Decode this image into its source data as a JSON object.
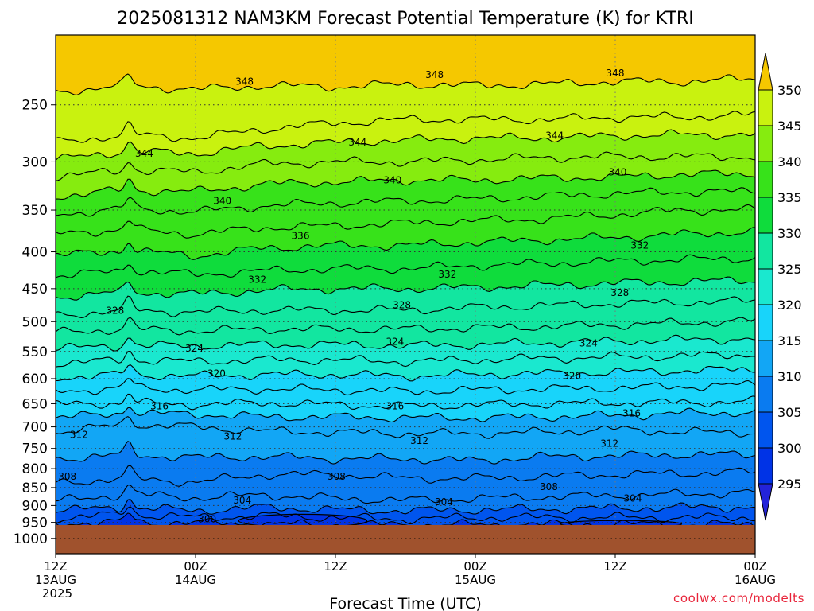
{
  "chart_data": {
    "type": "contour",
    "title": "2025081312 NAM3KM Forecast Potential Temperature (K) for KTRI",
    "xlabel": "Forecast Time (UTC)",
    "ylabel": "",
    "x_ticks": [
      {
        "hour": 0,
        "lines": [
          "12Z",
          "13AUG",
          "2025"
        ]
      },
      {
        "hour": 12,
        "lines": [
          "00Z",
          "14AUG"
        ]
      },
      {
        "hour": 24,
        "lines": [
          "12Z"
        ]
      },
      {
        "hour": 36,
        "lines": [
          "00Z",
          "15AUG"
        ]
      },
      {
        "hour": 48,
        "lines": [
          "12Z"
        ]
      },
      {
        "hour": 60,
        "lines": [
          "00Z",
          "16AUG"
        ]
      }
    ],
    "xlim": [
      0,
      60
    ],
    "y_scale": "log",
    "ylim": [
      200,
      1050
    ],
    "y_ticks": [
      250,
      300,
      350,
      400,
      450,
      500,
      550,
      600,
      650,
      700,
      750,
      800,
      850,
      900,
      950,
      1000
    ],
    "grid": "dotted",
    "surface_pressure_hpa": 958,
    "colorbar": {
      "ticks": [
        295,
        300,
        305,
        310,
        315,
        320,
        325,
        330,
        335,
        340,
        345,
        350
      ],
      "extend": "both",
      "colors": [
        "#2323d9",
        "#0033e6",
        "#0055ee",
        "#0a7bf0",
        "#12a6f5",
        "#18d4fa",
        "#1ae8cf",
        "#12e6a0",
        "#0fdc3c",
        "#37e21a",
        "#86ec0f",
        "#c9f20f",
        "#f2f20c",
        "#f5c800"
      ]
    },
    "contour_interval": 2,
    "isentropes": [
      {
        "theta": 300,
        "x": [
          0,
          6,
          12,
          18,
          24,
          30,
          36,
          42,
          48,
          54,
          60
        ],
        "p": [
          952,
          950,
          951,
          955,
          957,
          957,
          957,
          956,
          955,
          956,
          957
        ]
      },
      {
        "theta": 302,
        "x": [
          0,
          6,
          12,
          18,
          24,
          30,
          36,
          42,
          48,
          54,
          60
        ],
        "p": [
          938,
          925,
          935,
          930,
          935,
          940,
          935,
          935,
          935,
          935,
          935
        ]
      },
      {
        "theta": 304,
        "x": [
          0,
          6,
          12,
          18,
          24,
          30,
          36,
          42,
          48,
          54,
          60
        ],
        "p": [
          915,
          905,
          915,
          905,
          912,
          915,
          912,
          910,
          908,
          905,
          905
        ]
      },
      {
        "theta": 306,
        "x": [
          0,
          6,
          12,
          18,
          24,
          30,
          36,
          42,
          48,
          54,
          60
        ],
        "p": [
          888,
          868,
          878,
          870,
          880,
          885,
          880,
          875,
          872,
          868,
          862
        ]
      },
      {
        "theta": 308,
        "x": [
          0,
          6,
          12,
          18,
          24,
          30,
          36,
          42,
          48,
          54,
          60
        ],
        "p": [
          838,
          825,
          835,
          815,
          815,
          825,
          825,
          820,
          815,
          812,
          808
        ]
      },
      {
        "theta": 310,
        "x": [
          0,
          6,
          12,
          18,
          24,
          30,
          36,
          42,
          48,
          54,
          60
        ],
        "p": [
          775,
          765,
          772,
          770,
          775,
          775,
          780,
          770,
          768,
          765,
          765
        ]
      },
      {
        "theta": 312,
        "x": [
          0,
          6,
          12,
          18,
          24,
          30,
          36,
          42,
          48,
          54,
          60
        ],
        "p": [
          712,
          695,
          700,
          710,
          712,
          715,
          715,
          712,
          705,
          712,
          712
        ]
      },
      {
        "theta": 314,
        "x": [
          0,
          6,
          12,
          18,
          24,
          30,
          36,
          42,
          48,
          54,
          60
        ],
        "p": [
          680,
          670,
          672,
          678,
          678,
          680,
          680,
          678,
          675,
          670,
          668
        ]
      },
      {
        "theta": 316,
        "x": [
          0,
          6,
          12,
          18,
          24,
          30,
          36,
          42,
          48,
          54,
          60
        ],
        "p": [
          652,
          648,
          652,
          648,
          652,
          655,
          652,
          650,
          648,
          648,
          645
        ]
      },
      {
        "theta": 318,
        "x": [
          0,
          6,
          12,
          18,
          24,
          30,
          36,
          42,
          48,
          54,
          60
        ],
        "p": [
          625,
          618,
          622,
          620,
          622,
          625,
          622,
          620,
          618,
          615,
          612
        ]
      },
      {
        "theta": 320,
        "x": [
          0,
          6,
          12,
          18,
          24,
          30,
          36,
          42,
          48,
          54,
          60
        ],
        "p": [
          598,
          592,
          595,
          592,
          592,
          595,
          592,
          590,
          588,
          585,
          582
        ]
      },
      {
        "theta": 322,
        "x": [
          0,
          6,
          12,
          18,
          24,
          30,
          36,
          42,
          48,
          54,
          60
        ],
        "p": [
          572,
          565,
          568,
          565,
          565,
          568,
          565,
          562,
          560,
          558,
          555
        ]
      },
      {
        "theta": 324,
        "x": [
          0,
          6,
          12,
          18,
          24,
          30,
          36,
          42,
          48,
          54,
          60
        ],
        "p": [
          545,
          540,
          540,
          538,
          538,
          540,
          538,
          535,
          532,
          530,
          528
        ]
      },
      {
        "theta": 326,
        "x": [
          0,
          6,
          12,
          18,
          24,
          30,
          36,
          42,
          48,
          54,
          60
        ],
        "p": [
          518,
          512,
          515,
          512,
          512,
          512,
          510,
          508,
          505,
          502,
          498
        ]
      },
      {
        "theta": 328,
        "x": [
          0,
          6,
          12,
          18,
          24,
          30,
          36,
          42,
          48,
          54,
          60
        ],
        "p": [
          490,
          482,
          485,
          482,
          482,
          482,
          478,
          475,
          472,
          470,
          468
        ]
      },
      {
        "theta": 330,
        "x": [
          0,
          6,
          12,
          18,
          24,
          30,
          36,
          42,
          48,
          54,
          60
        ],
        "p": [
          462,
          455,
          458,
          452,
          450,
          450,
          448,
          445,
          442,
          440,
          438
        ]
      },
      {
        "theta": 332,
        "x": [
          0,
          6,
          12,
          18,
          24,
          30,
          36,
          42,
          48,
          54,
          60
        ],
        "p": [
          432,
          425,
          430,
          425,
          422,
          422,
          418,
          415,
          412,
          410,
          408
        ]
      },
      {
        "theta": 334,
        "x": [
          0,
          6,
          12,
          18,
          24,
          30,
          36,
          42,
          48,
          54,
          60
        ],
        "p": [
          405,
          398,
          405,
          395,
          392,
          392,
          388,
          385,
          382,
          378,
          375
        ]
      },
      {
        "theta": 336,
        "x": [
          0,
          6,
          12,
          18,
          24,
          30,
          36,
          42,
          48,
          54,
          60
        ],
        "p": [
          378,
          372,
          378,
          370,
          368,
          365,
          362,
          360,
          355,
          350,
          350
        ]
      },
      {
        "theta": 338,
        "x": [
          0,
          6,
          12,
          18,
          24,
          30,
          36,
          42,
          48,
          54,
          60
        ],
        "p": [
          355,
          348,
          352,
          345,
          342,
          340,
          338,
          335,
          332,
          330,
          330
        ]
      },
      {
        "theta": 340,
        "x": [
          0,
          6,
          12,
          18,
          24,
          30,
          36,
          42,
          48,
          54,
          60
        ],
        "p": [
          335,
          328,
          330,
          322,
          320,
          318,
          318,
          316,
          315,
          312,
          312
        ]
      },
      {
        "theta": 342,
        "x": [
          0,
          6,
          12,
          18,
          24,
          30,
          36,
          42,
          48,
          54,
          60
        ],
        "p": [
          315,
          308,
          310,
          302,
          300,
          300,
          298,
          296,
          295,
          295,
          295
        ]
      },
      {
        "theta": 344,
        "x": [
          0,
          6,
          12,
          18,
          24,
          30,
          36,
          42,
          48,
          54,
          60
        ],
        "p": [
          298,
          290,
          292,
          285,
          282,
          280,
          278,
          278,
          276,
          275,
          275
        ]
      },
      {
        "theta": 346,
        "x": [
          0,
          6,
          12,
          18,
          24,
          30,
          36,
          42,
          48,
          54,
          60
        ],
        "p": [
          282,
          275,
          278,
          270,
          265,
          262,
          262,
          262,
          260,
          260,
          258
        ]
      },
      {
        "theta": 348,
        "x": [
          0,
          6,
          12,
          18,
          24,
          30,
          36,
          42,
          48,
          54,
          60
        ],
        "p": [
          240,
          235,
          238,
          235,
          236,
          234,
          235,
          234,
          232,
          232,
          230
        ]
      }
    ],
    "contour_labels": [
      {
        "text": "348",
        "x": 16.2,
        "p": 232
      },
      {
        "text": "348",
        "x": 32.5,
        "p": 227
      },
      {
        "text": "348",
        "x": 48.0,
        "p": 226
      },
      {
        "text": "344",
        "x": 7.6,
        "p": 292
      },
      {
        "text": "344",
        "x": 25.9,
        "p": 282
      },
      {
        "text": "344",
        "x": 42.8,
        "p": 276
      },
      {
        "text": "340",
        "x": 14.3,
        "p": 340
      },
      {
        "text": "340",
        "x": 28.9,
        "p": 318
      },
      {
        "text": "340",
        "x": 48.2,
        "p": 310
      },
      {
        "text": "336",
        "x": 21.0,
        "p": 380
      },
      {
        "text": "332",
        "x": 17.3,
        "p": 437
      },
      {
        "text": "332",
        "x": 33.6,
        "p": 430
      },
      {
        "text": "332",
        "x": 50.1,
        "p": 392
      },
      {
        "text": "328",
        "x": 5.1,
        "p": 483
      },
      {
        "text": "328",
        "x": 29.7,
        "p": 474
      },
      {
        "text": "328",
        "x": 48.4,
        "p": 456
      },
      {
        "text": "324",
        "x": 11.9,
        "p": 545
      },
      {
        "text": "324",
        "x": 29.1,
        "p": 533
      },
      {
        "text": "324",
        "x": 45.7,
        "p": 536
      },
      {
        "text": "320",
        "x": 13.8,
        "p": 590
      },
      {
        "text": "320",
        "x": 44.3,
        "p": 595
      },
      {
        "text": "316",
        "x": 8.9,
        "p": 655
      },
      {
        "text": "316",
        "x": 29.1,
        "p": 655
      },
      {
        "text": "316",
        "x": 49.4,
        "p": 670
      },
      {
        "text": "312",
        "x": 2.0,
        "p": 718
      },
      {
        "text": "312",
        "x": 15.2,
        "p": 722
      },
      {
        "text": "312",
        "x": 31.2,
        "p": 732
      },
      {
        "text": "312",
        "x": 47.5,
        "p": 738
      },
      {
        "text": "308",
        "x": 1.0,
        "p": 820
      },
      {
        "text": "308",
        "x": 24.1,
        "p": 820
      },
      {
        "text": "308",
        "x": 42.3,
        "p": 848
      },
      {
        "text": "304",
        "x": 16.0,
        "p": 885
      },
      {
        "text": "304",
        "x": 33.3,
        "p": 890
      },
      {
        "text": "304",
        "x": 49.5,
        "p": 880
      },
      {
        "text": "300",
        "x": 13.0,
        "p": 940
      }
    ],
    "cold_pools": [
      {
        "theta": 298,
        "x_center": 21.2,
        "p_center": 945,
        "x_half": 5.5,
        "p_half": 20
      },
      {
        "theta": 298,
        "x_center": 48.5,
        "p_center": 955,
        "x_half": 5.2,
        "p_half": 11
      }
    ]
  },
  "credit": "coolwx.com/modelts"
}
